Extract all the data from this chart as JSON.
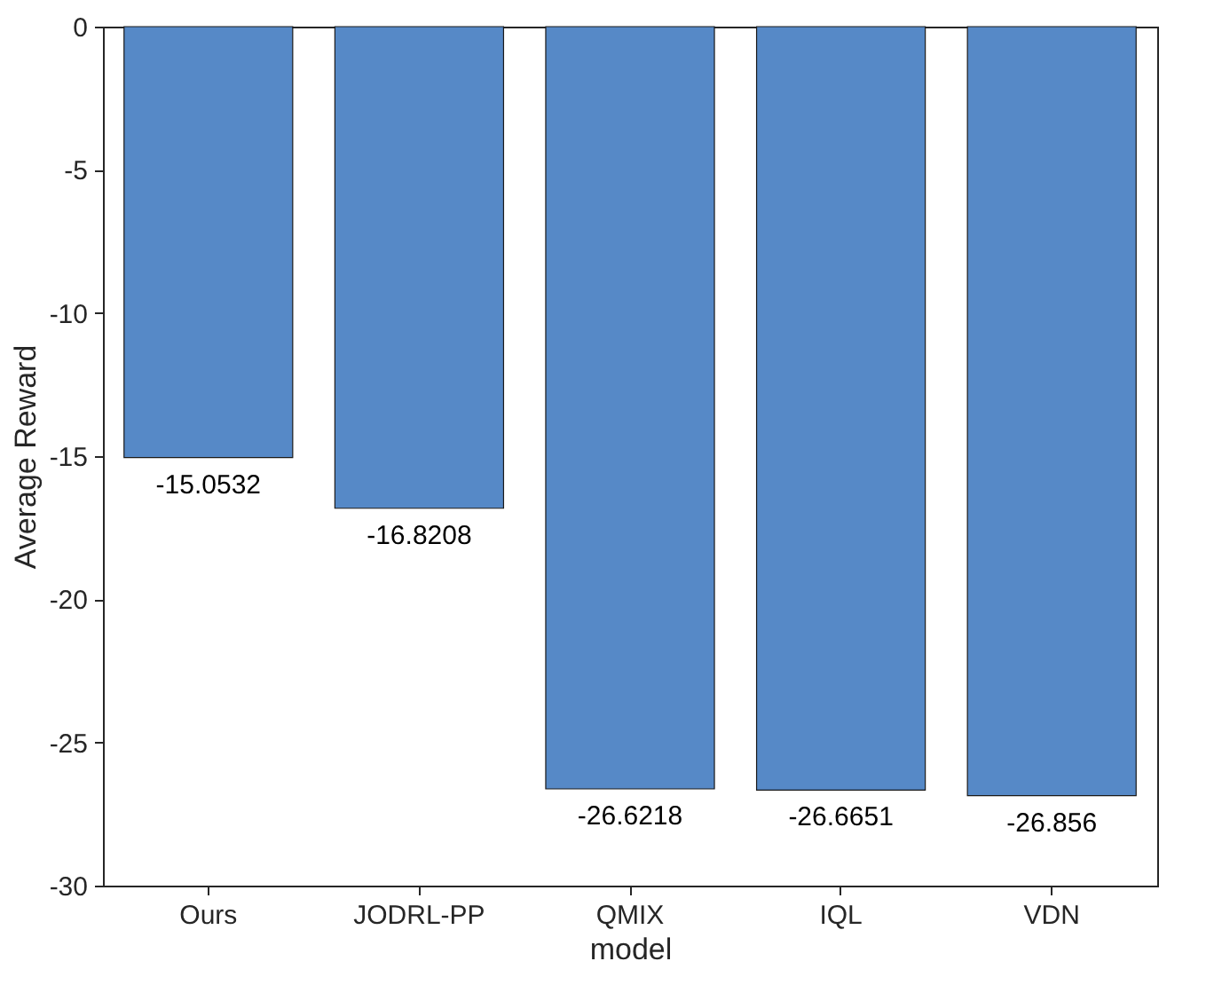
{
  "chart_data": {
    "type": "bar",
    "xlabel": "model",
    "ylabel": "Average Reward",
    "categories": [
      "Ours",
      "JODRL-PP",
      "QMIX",
      "IQL",
      "VDN"
    ],
    "values": [
      -15.0532,
      -16.8208,
      -26.6218,
      -26.6651,
      -26.856
    ],
    "color": "#5689c7",
    "ylim": [
      -30,
      0
    ],
    "yticks": [
      -30,
      -25,
      -20,
      -15,
      -10,
      -5,
      0
    ],
    "data_labels": true,
    "grid": false
  }
}
